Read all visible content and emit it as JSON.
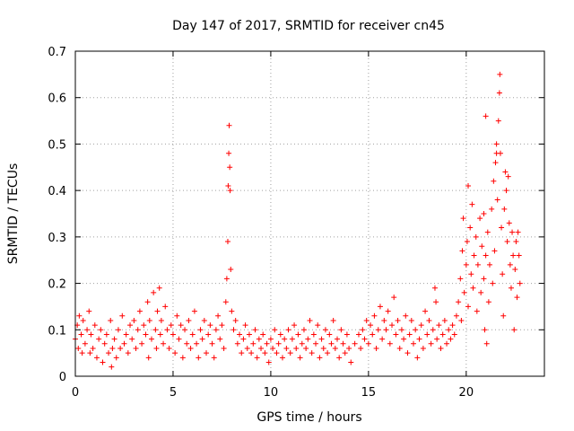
{
  "chart_data": {
    "type": "scatter",
    "title": "Day 147 of 2017, SRMTID for receiver cn45",
    "xlabel": "GPS time / hours",
    "ylabel": "SRMTID / TECUs",
    "xlim": [
      0,
      24
    ],
    "ylim": [
      0,
      0.7
    ],
    "grid": true,
    "point_color": "#ff0000",
    "marker": "plus",
    "x_ticks": [
      {
        "value": 0,
        "label": "0"
      },
      {
        "value": 5,
        "label": "5"
      },
      {
        "value": 10,
        "label": "10"
      },
      {
        "value": 15,
        "label": "15"
      },
      {
        "value": 20,
        "label": "20"
      }
    ],
    "y_ticks": [
      {
        "value": 0,
        "label": "0"
      },
      {
        "value": 0.1,
        "label": "0.1"
      },
      {
        "value": 0.2,
        "label": "0.2"
      },
      {
        "value": 0.3,
        "label": "0.3"
      },
      {
        "value": 0.4,
        "label": "0.4"
      },
      {
        "value": 0.5,
        "label": "0.5"
      },
      {
        "value": 0.6,
        "label": "0.6"
      },
      {
        "value": 0.7,
        "label": "0.7"
      }
    ],
    "series": [
      {
        "name": "SRMTID",
        "points": [
          [
            0.0,
            0.08
          ],
          [
            0.1,
            0.11
          ],
          [
            0.15,
            0.06
          ],
          [
            0.2,
            0.13
          ],
          [
            0.3,
            0.09
          ],
          [
            0.35,
            0.05
          ],
          [
            0.4,
            0.12
          ],
          [
            0.5,
            0.07
          ],
          [
            0.6,
            0.1
          ],
          [
            0.7,
            0.14
          ],
          [
            0.75,
            0.05
          ],
          [
            0.8,
            0.09
          ],
          [
            0.9,
            0.06
          ],
          [
            1.0,
            0.11
          ],
          [
            1.1,
            0.04
          ],
          [
            1.2,
            0.08
          ],
          [
            1.3,
            0.1
          ],
          [
            1.4,
            0.03
          ],
          [
            1.5,
            0.07
          ],
          [
            1.6,
            0.09
          ],
          [
            1.7,
            0.05
          ],
          [
            1.8,
            0.12
          ],
          [
            1.85,
            0.02
          ],
          [
            1.9,
            0.06
          ],
          [
            2.0,
            0.08
          ],
          [
            2.1,
            0.04
          ],
          [
            2.2,
            0.1
          ],
          [
            2.3,
            0.06
          ],
          [
            2.4,
            0.13
          ],
          [
            2.5,
            0.07
          ],
          [
            2.6,
            0.09
          ],
          [
            2.7,
            0.05
          ],
          [
            2.8,
            0.11
          ],
          [
            2.9,
            0.08
          ],
          [
            3.0,
            0.12
          ],
          [
            3.1,
            0.06
          ],
          [
            3.2,
            0.1
          ],
          [
            3.3,
            0.14
          ],
          [
            3.4,
            0.07
          ],
          [
            3.5,
            0.11
          ],
          [
            3.6,
            0.09
          ],
          [
            3.7,
            0.16
          ],
          [
            3.75,
            0.04
          ],
          [
            3.8,
            0.12
          ],
          [
            3.9,
            0.08
          ],
          [
            4.0,
            0.18
          ],
          [
            4.1,
            0.1
          ],
          [
            4.15,
            0.06
          ],
          [
            4.2,
            0.14
          ],
          [
            4.3,
            0.19
          ],
          [
            4.35,
            0.09
          ],
          [
            4.4,
            0.12
          ],
          [
            4.5,
            0.07
          ],
          [
            4.6,
            0.15
          ],
          [
            4.7,
            0.1
          ],
          [
            4.8,
            0.06
          ],
          [
            4.9,
            0.11
          ],
          [
            5.0,
            0.09
          ],
          [
            5.1,
            0.05
          ],
          [
            5.2,
            0.13
          ],
          [
            5.3,
            0.08
          ],
          [
            5.4,
            0.11
          ],
          [
            5.5,
            0.04
          ],
          [
            5.6,
            0.1
          ],
          [
            5.7,
            0.07
          ],
          [
            5.8,
            0.12
          ],
          [
            5.9,
            0.06
          ],
          [
            6.0,
            0.09
          ],
          [
            6.1,
            0.14
          ],
          [
            6.2,
            0.07
          ],
          [
            6.3,
            0.04
          ],
          [
            6.4,
            0.1
          ],
          [
            6.5,
            0.08
          ],
          [
            6.6,
            0.12
          ],
          [
            6.7,
            0.05
          ],
          [
            6.8,
            0.09
          ],
          [
            6.9,
            0.11
          ],
          [
            7.0,
            0.07
          ],
          [
            7.1,
            0.04
          ],
          [
            7.2,
            0.1
          ],
          [
            7.3,
            0.13
          ],
          [
            7.4,
            0.08
          ],
          [
            7.5,
            0.11
          ],
          [
            7.6,
            0.06
          ],
          [
            7.7,
            0.16
          ],
          [
            7.75,
            0.21
          ],
          [
            7.8,
            0.29
          ],
          [
            7.82,
            0.41
          ],
          [
            7.85,
            0.48
          ],
          [
            7.87,
            0.54
          ],
          [
            7.9,
            0.45
          ],
          [
            7.92,
            0.4
          ],
          [
            7.95,
            0.23
          ],
          [
            8.0,
            0.14
          ],
          [
            8.1,
            0.1
          ],
          [
            8.2,
            0.12
          ],
          [
            8.3,
            0.07
          ],
          [
            8.4,
            0.09
          ],
          [
            8.5,
            0.05
          ],
          [
            8.6,
            0.08
          ],
          [
            8.7,
            0.11
          ],
          [
            8.8,
            0.06
          ],
          [
            8.9,
            0.09
          ],
          [
            9.0,
            0.05
          ],
          [
            9.1,
            0.07
          ],
          [
            9.2,
            0.1
          ],
          [
            9.3,
            0.04
          ],
          [
            9.4,
            0.08
          ],
          [
            9.5,
            0.06
          ],
          [
            9.6,
            0.09
          ],
          [
            9.7,
            0.05
          ],
          [
            9.8,
            0.07
          ],
          [
            9.9,
            0.03
          ],
          [
            10.0,
            0.08
          ],
          [
            10.1,
            0.06
          ],
          [
            10.2,
            0.1
          ],
          [
            10.3,
            0.05
          ],
          [
            10.4,
            0.07
          ],
          [
            10.5,
            0.09
          ],
          [
            10.6,
            0.04
          ],
          [
            10.7,
            0.08
          ],
          [
            10.8,
            0.06
          ],
          [
            10.9,
            0.1
          ],
          [
            11.0,
            0.05
          ],
          [
            11.1,
            0.08
          ],
          [
            11.2,
            0.11
          ],
          [
            11.3,
            0.06
          ],
          [
            11.4,
            0.09
          ],
          [
            11.5,
            0.04
          ],
          [
            11.6,
            0.07
          ],
          [
            11.7,
            0.1
          ],
          [
            11.8,
            0.06
          ],
          [
            11.9,
            0.08
          ],
          [
            12.0,
            0.12
          ],
          [
            12.1,
            0.05
          ],
          [
            12.2,
            0.09
          ],
          [
            12.3,
            0.07
          ],
          [
            12.4,
            0.11
          ],
          [
            12.5,
            0.04
          ],
          [
            12.6,
            0.08
          ],
          [
            12.7,
            0.06
          ],
          [
            12.8,
            0.1
          ],
          [
            12.9,
            0.05
          ],
          [
            13.0,
            0.09
          ],
          [
            13.1,
            0.07
          ],
          [
            13.2,
            0.12
          ],
          [
            13.3,
            0.06
          ],
          [
            13.4,
            0.08
          ],
          [
            13.5,
            0.04
          ],
          [
            13.6,
            0.1
          ],
          [
            13.7,
            0.07
          ],
          [
            13.8,
            0.05
          ],
          [
            13.9,
            0.09
          ],
          [
            14.0,
            0.06
          ],
          [
            14.1,
            0.03
          ],
          [
            14.3,
            0.07
          ],
          [
            14.5,
            0.09
          ],
          [
            14.6,
            0.06
          ],
          [
            14.7,
            0.1
          ],
          [
            14.8,
            0.08
          ],
          [
            14.9,
            0.12
          ],
          [
            15.0,
            0.07
          ],
          [
            15.1,
            0.11
          ],
          [
            15.2,
            0.09
          ],
          [
            15.3,
            0.13
          ],
          [
            15.4,
            0.06
          ],
          [
            15.5,
            0.1
          ],
          [
            15.6,
            0.15
          ],
          [
            15.7,
            0.08
          ],
          [
            15.8,
            0.12
          ],
          [
            15.9,
            0.1
          ],
          [
            16.0,
            0.14
          ],
          [
            16.1,
            0.07
          ],
          [
            16.2,
            0.11
          ],
          [
            16.3,
            0.17
          ],
          [
            16.4,
            0.09
          ],
          [
            16.5,
            0.12
          ],
          [
            16.6,
            0.06
          ],
          [
            16.7,
            0.1
          ],
          [
            16.8,
            0.08
          ],
          [
            16.9,
            0.13
          ],
          [
            17.0,
            0.05
          ],
          [
            17.1,
            0.09
          ],
          [
            17.2,
            0.12
          ],
          [
            17.3,
            0.07
          ],
          [
            17.4,
            0.1
          ],
          [
            17.5,
            0.04
          ],
          [
            17.6,
            0.08
          ],
          [
            17.7,
            0.11
          ],
          [
            17.8,
            0.06
          ],
          [
            17.9,
            0.14
          ],
          [
            18.0,
            0.09
          ],
          [
            18.1,
            0.12
          ],
          [
            18.2,
            0.07
          ],
          [
            18.3,
            0.1
          ],
          [
            18.4,
            0.19
          ],
          [
            18.45,
            0.16
          ],
          [
            18.5,
            0.08
          ],
          [
            18.6,
            0.11
          ],
          [
            18.7,
            0.06
          ],
          [
            18.8,
            0.09
          ],
          [
            18.9,
            0.12
          ],
          [
            19.0,
            0.07
          ],
          [
            19.1,
            0.1
          ],
          [
            19.2,
            0.08
          ],
          [
            19.3,
            0.11
          ],
          [
            19.4,
            0.09
          ],
          [
            19.5,
            0.13
          ],
          [
            19.6,
            0.16
          ],
          [
            19.7,
            0.21
          ],
          [
            19.75,
            0.12
          ],
          [
            19.8,
            0.27
          ],
          [
            19.85,
            0.34
          ],
          [
            19.9,
            0.18
          ],
          [
            20.0,
            0.24
          ],
          [
            20.05,
            0.29
          ],
          [
            20.1,
            0.15
          ],
          [
            20.2,
            0.32
          ],
          [
            20.25,
            0.22
          ],
          [
            20.3,
            0.37
          ],
          [
            20.35,
            0.19
          ],
          [
            20.4,
            0.26
          ],
          [
            20.5,
            0.3
          ],
          [
            20.55,
            0.14
          ],
          [
            20.6,
            0.24
          ],
          [
            20.7,
            0.34
          ],
          [
            20.75,
            0.18
          ],
          [
            20.8,
            0.28
          ],
          [
            20.9,
            0.21
          ],
          [
            20.95,
            0.1
          ],
          [
            21.0,
            0.26
          ],
          [
            21.05,
            0.07
          ],
          [
            21.1,
            0.31
          ],
          [
            21.15,
            0.16
          ],
          [
            21.2,
            0.24
          ],
          [
            21.3,
            0.36
          ],
          [
            21.35,
            0.2
          ],
          [
            21.4,
            0.42
          ],
          [
            21.45,
            0.27
          ],
          [
            21.5,
            0.46
          ],
          [
            21.55,
            0.5
          ],
          [
            21.6,
            0.38
          ],
          [
            21.65,
            0.55
          ],
          [
            21.7,
            0.61
          ],
          [
            21.72,
            0.65
          ],
          [
            21.75,
            0.48
          ],
          [
            21.8,
            0.32
          ],
          [
            21.85,
            0.22
          ],
          [
            21.9,
            0.13
          ],
          [
            21.95,
            0.36
          ],
          [
            22.0,
            0.44
          ],
          [
            22.05,
            0.4
          ],
          [
            22.1,
            0.29
          ],
          [
            22.15,
            0.43
          ],
          [
            22.2,
            0.33
          ],
          [
            22.25,
            0.24
          ],
          [
            22.3,
            0.19
          ],
          [
            22.35,
            0.31
          ],
          [
            22.4,
            0.26
          ],
          [
            22.45,
            0.1
          ],
          [
            22.5,
            0.23
          ],
          [
            22.55,
            0.29
          ],
          [
            22.6,
            0.17
          ],
          [
            22.65,
            0.31
          ],
          [
            22.7,
            0.26
          ],
          [
            22.75,
            0.2
          ],
          [
            21.0,
            0.56
          ],
          [
            21.55,
            0.48
          ],
          [
            20.9,
            0.35
          ],
          [
            20.1,
            0.41
          ]
        ]
      }
    ]
  }
}
